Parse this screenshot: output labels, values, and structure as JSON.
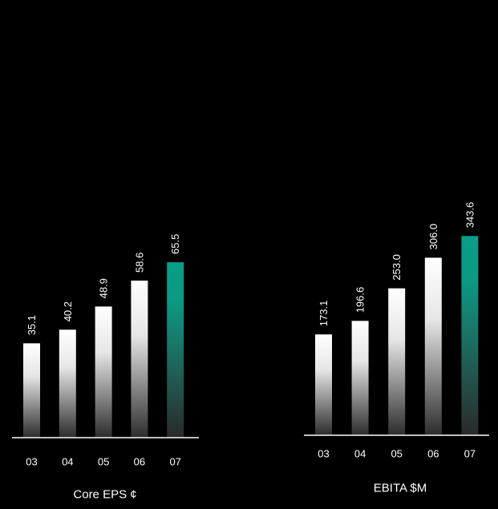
{
  "colors": {
    "background": "#000000",
    "bar_top": "#ffffff",
    "bar_bottom": "#2e2e2e",
    "highlight_top": "#0a9c86",
    "highlight_bottom": "#2a2a2a",
    "text": "#ffffff",
    "axis": "#ffffff"
  },
  "chart_data": [
    {
      "type": "bar",
      "title": "Core EPS ¢",
      "xlabel": "",
      "ylabel": "",
      "categories": [
        "03",
        "04",
        "05",
        "06",
        "07"
      ],
      "values": [
        35.1,
        40.2,
        48.9,
        58.6,
        65.5
      ],
      "value_labels": [
        "35.1",
        "40.2",
        "48.9",
        "58.6",
        "65.5"
      ],
      "highlight_index": 4,
      "ylim": [
        0,
        80
      ],
      "grid": false,
      "legend": "none"
    },
    {
      "type": "bar",
      "title": "EBITA $M",
      "xlabel": "",
      "ylabel": "",
      "categories": [
        "03",
        "04",
        "05",
        "06",
        "07"
      ],
      "values": [
        173.1,
        196.6,
        253.0,
        306.0,
        343.6
      ],
      "value_labels": [
        "173.1",
        "196.6",
        "253.0",
        "306.0",
        "343.6"
      ],
      "highlight_index": 4,
      "ylim": [
        0,
        380
      ],
      "grid": false,
      "legend": "none"
    }
  ]
}
